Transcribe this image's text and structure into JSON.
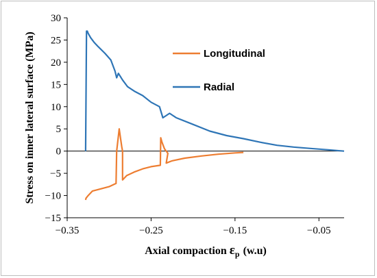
{
  "chart_data": {
    "type": "line",
    "xlabel": "Axial compaction εp (w.u)",
    "xlabel_main": "Axial compaction",
    "xlabel_symbol": "ε",
    "xlabel_sub": "p",
    "xlabel_unit": "(w.u)",
    "ylabel": "Stress on inner lateral surface (MPa)",
    "xlim": [
      -0.35,
      -0.02
    ],
    "ylim": [
      -15,
      30
    ],
    "x_ticks": [
      -0.35,
      -0.25,
      -0.15,
      -0.05
    ],
    "x_tick_labels": [
      "−0.35",
      "−0.25",
      "−0.15",
      "−0.05"
    ],
    "y_ticks": [
      -15,
      -10,
      -5,
      0,
      5,
      10,
      15,
      20,
      25,
      30
    ],
    "y_tick_labels": [
      "−15",
      "−10",
      "−5",
      "0",
      "5",
      "10",
      "15",
      "20",
      "25",
      "30"
    ],
    "grid": false,
    "legend_position": "top-right",
    "colors": {
      "longitudinal": "#ed7d31",
      "radial": "#2e75b6"
    },
    "series": [
      {
        "name": "Longitudinal",
        "color": "#ed7d31",
        "x": [
          -0.328,
          -0.3275,
          -0.325,
          -0.32,
          -0.31,
          -0.3,
          -0.292,
          -0.2918,
          -0.291,
          -0.288,
          -0.285,
          -0.284,
          -0.284,
          -0.279,
          -0.27,
          -0.26,
          -0.25,
          -0.239,
          -0.2385,
          -0.237,
          -0.234,
          -0.232,
          -0.23,
          -0.232,
          -0.225,
          -0.21,
          -0.19,
          -0.17,
          -0.15,
          -0.14
        ],
        "y": [
          -11,
          -10.6,
          -10,
          -9,
          -8.5,
          -8,
          -7.3,
          -7.3,
          0,
          5,
          1,
          0,
          -6.5,
          -5.5,
          -4.7,
          -4,
          -3.5,
          -3.2,
          3,
          2,
          0.5,
          0,
          -0.5,
          -2.7,
          -2.2,
          -1.6,
          -1.1,
          -0.7,
          -0.4,
          -0.3
        ]
      },
      {
        "name": "Radial",
        "color": "#2e75b6",
        "x": [
          -0.328,
          -0.327,
          -0.326,
          -0.325,
          -0.322,
          -0.318,
          -0.313,
          -0.305,
          -0.298,
          -0.293,
          -0.291,
          -0.289,
          -0.284,
          -0.278,
          -0.27,
          -0.26,
          -0.25,
          -0.24,
          -0.236,
          -0.228,
          -0.22,
          -0.2,
          -0.18,
          -0.16,
          -0.14,
          -0.12,
          -0.1,
          -0.08,
          -0.06,
          -0.04,
          -0.02
        ],
        "y": [
          0,
          27,
          27,
          26.5,
          25.5,
          24.5,
          23.5,
          22,
          20.5,
          18,
          16.5,
          17.5,
          16,
          14.5,
          13.5,
          12.5,
          11,
          10,
          7.5,
          8.5,
          7.5,
          6,
          4.5,
          3.5,
          2.8,
          2,
          1.3,
          0.9,
          0.6,
          0.3,
          0
        ]
      }
    ]
  }
}
